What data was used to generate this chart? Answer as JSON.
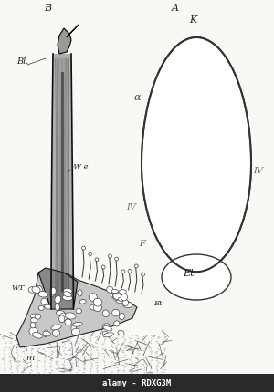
{
  "fig_width": 3.0,
  "fig_height": 4.31,
  "dpi": 100,
  "bg_color": "#f5f5f0",
  "label_A": "A",
  "label_B": "B",
  "label_K": "K",
  "label_alpha": "α",
  "label_IV_left_A": "IV",
  "label_IV_right_A": "IV",
  "label_IV_left_B": "IV",
  "label_F": "F",
  "label_Et_A": "Et",
  "label_Et_B": "Et",
  "label_Bl": "Bl.",
  "label_We": "W e",
  "label_WT": "WT",
  "label_m": "m",
  "watermark": "alamy - RDXG3M",
  "watermark_bg": "#2a2a2a",
  "watermark_color": "#ffffff",
  "cell_color": "#333333",
  "stem_dark": "#2a2a2a",
  "stem_mid": "#888888",
  "stem_light": "#cccccc"
}
